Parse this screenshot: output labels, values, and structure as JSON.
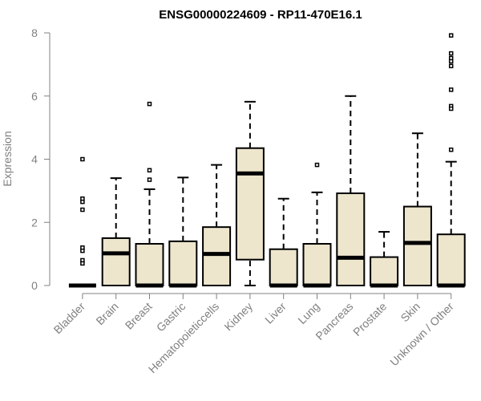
{
  "chart_data": {
    "type": "boxplot",
    "title": "ENSG00000224609 - RP11-470E16.1",
    "ylabel": "Expression",
    "xlabel": "",
    "ylim": [
      0,
      8
    ],
    "yticks": [
      0,
      2,
      4,
      6,
      8
    ],
    "box_fill": "#ede6cd",
    "line_color": "#000000",
    "axis_color": "#808080",
    "categories": [
      "Bladder",
      "Brain",
      "Breast",
      "Gastric",
      "Hematopoieticcells",
      "Kidney",
      "Liver",
      "Lung",
      "Pancreas",
      "Prostate",
      "Skin",
      "Unknown / Other"
    ],
    "boxes": [
      {
        "category": "Bladder",
        "whisker_low": 0,
        "q1": 0,
        "median": 0,
        "q3": 0,
        "whisker_high": 0,
        "outliers": [
          4.0,
          2.75,
          2.65,
          2.4,
          1.2,
          1.1,
          0.8,
          0.7
        ]
      },
      {
        "category": "Brain",
        "whisker_low": 0,
        "q1": 0,
        "median": 1.02,
        "q3": 1.5,
        "whisker_high": 3.4,
        "outliers": []
      },
      {
        "category": "Breast",
        "whisker_low": 0,
        "q1": 0,
        "median": 0,
        "q3": 1.32,
        "whisker_high": 3.05,
        "outliers": [
          5.75,
          3.65,
          3.35
        ]
      },
      {
        "category": "Gastric",
        "whisker_low": 0,
        "q1": 0,
        "median": 0,
        "q3": 1.4,
        "whisker_high": 3.42,
        "outliers": []
      },
      {
        "category": "Hematopoieticcells",
        "whisker_low": 0,
        "q1": 0,
        "median": 1.0,
        "q3": 1.85,
        "whisker_high": 3.82,
        "outliers": []
      },
      {
        "category": "Kidney",
        "whisker_low": 0,
        "q1": 0.82,
        "median": 3.55,
        "q3": 4.35,
        "whisker_high": 5.82,
        "outliers": []
      },
      {
        "category": "Liver",
        "whisker_low": 0,
        "q1": 0,
        "median": 0,
        "q3": 1.15,
        "whisker_high": 2.75,
        "outliers": []
      },
      {
        "category": "Lung",
        "whisker_low": 0,
        "q1": 0,
        "median": 0,
        "q3": 1.32,
        "whisker_high": 2.95,
        "outliers": [
          3.82
        ]
      },
      {
        "category": "Pancreas",
        "whisker_low": 0,
        "q1": 0,
        "median": 0.88,
        "q3": 2.92,
        "whisker_high": 6.0,
        "outliers": []
      },
      {
        "category": "Prostate",
        "whisker_low": 0,
        "q1": 0,
        "median": 0,
        "q3": 0.9,
        "whisker_high": 1.7,
        "outliers": []
      },
      {
        "category": "Skin",
        "whisker_low": 0,
        "q1": 0,
        "median": 1.35,
        "q3": 2.5,
        "whisker_high": 4.82,
        "outliers": []
      },
      {
        "category": "Unknown / Other",
        "whisker_low": 0,
        "q1": 0,
        "median": 0,
        "q3": 1.62,
        "whisker_high": 3.92,
        "outliers": [
          7.92,
          7.35,
          7.2,
          7.1,
          6.95,
          6.2,
          5.68,
          5.6,
          4.3
        ]
      }
    ]
  }
}
